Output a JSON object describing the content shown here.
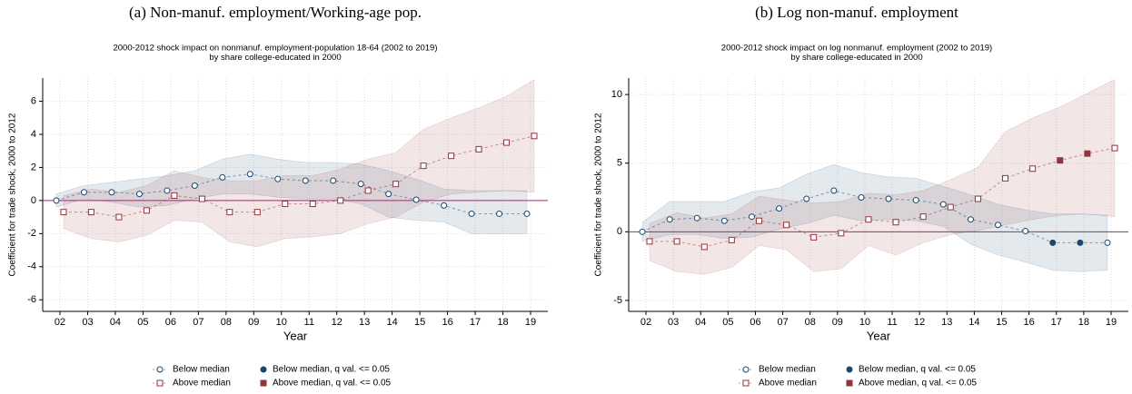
{
  "chart_data": [
    {
      "type": "line",
      "caption": "(a) Non-manuf. employment/Working-age pop.",
      "title": [
        "2000-2012 shock impact on nonmanuf. employment-population 18-64 (2002 to 2019)",
        "by share college-educated in 2000"
      ],
      "xlabel": "Year",
      "ylabel": "Coefficient for trade shock, 2000 to 2012",
      "categories": [
        "02",
        "03",
        "04",
        "05",
        "06",
        "07",
        "08",
        "09",
        "10",
        "11",
        "12",
        "13",
        "14",
        "15",
        "16",
        "17",
        "18",
        "19"
      ],
      "ylim": [
        -6.7,
        7.4
      ],
      "yticks": [
        -6,
        -4,
        -2,
        0,
        2,
        4,
        6
      ],
      "reference_line": 0,
      "grid": true,
      "series": [
        {
          "name": "Below median",
          "significant_name": "Below median, q val. <= 0.05",
          "color": "#1a476f",
          "marker": "circle",
          "values": [
            0,
            0.5,
            0.5,
            0.4,
            0.6,
            0.9,
            1.4,
            1.6,
            1.3,
            1.2,
            1.2,
            1.0,
            0.4,
            0.05,
            -0.3,
            -0.8,
            -0.8,
            -0.8
          ],
          "significant": [
            false,
            false,
            false,
            false,
            false,
            false,
            false,
            false,
            false,
            false,
            false,
            false,
            false,
            false,
            false,
            false,
            false,
            false
          ],
          "ci_lower": [
            -0.4,
            0.1,
            -0.1,
            -0.4,
            -0.3,
            0.1,
            0.4,
            0.4,
            0.2,
            0.1,
            0.1,
            -0.2,
            -1.0,
            -1.2,
            -1.3,
            -2.0,
            -2.0,
            -2.0
          ],
          "ci_upper": [
            0.4,
            0.9,
            1.1,
            1.3,
            1.5,
            1.8,
            2.5,
            2.8,
            2.5,
            2.3,
            2.3,
            2.2,
            1.8,
            1.3,
            0.7,
            0.6,
            0.6,
            0.6
          ]
        },
        {
          "name": "Above median",
          "significant_name": "Above median, q val. <= 0.05",
          "color": "#90353b",
          "marker": "square",
          "values": [
            -0.7,
            -0.7,
            -1.0,
            -0.6,
            0.3,
            0.1,
            -0.7,
            -0.7,
            -0.2,
            -0.2,
            0.0,
            0.6,
            1.0,
            2.1,
            2.7,
            3.1,
            3.5,
            3.9
          ],
          "significant": [
            false,
            false,
            false,
            false,
            false,
            false,
            false,
            false,
            false,
            false,
            false,
            false,
            false,
            false,
            false,
            false,
            false,
            false
          ],
          "ci_lower": [
            -1.7,
            -2.3,
            -2.5,
            -2.1,
            -1.2,
            -1.3,
            -2.5,
            -2.8,
            -2.3,
            -2.2,
            -2.0,
            -1.4,
            -1.0,
            -0.1,
            0.4,
            0.5,
            0.6,
            0.5
          ],
          "ci_upper": [
            0.3,
            0.7,
            0.5,
            0.9,
            1.8,
            1.4,
            1.2,
            1.2,
            1.5,
            1.5,
            1.9,
            2.5,
            2.9,
            4.3,
            5.0,
            5.6,
            6.3,
            7.3
          ]
        }
      ]
    },
    {
      "type": "line",
      "caption": "(b) Log non-manuf. employment",
      "title": [
        "2000-2012 shock impact on log nonmanuf. employment (2002 to 2019)",
        "by share college-educated in 2000"
      ],
      "xlabel": "Year",
      "ylabel": "Coefficient for trade shock, 2000 to 2012",
      "categories": [
        "02",
        "03",
        "04",
        "05",
        "06",
        "07",
        "08",
        "09",
        "10",
        "11",
        "12",
        "13",
        "14",
        "15",
        "16",
        "17",
        "18",
        "19"
      ],
      "ylim": [
        -5.8,
        11.2
      ],
      "yticks": [
        -5,
        0,
        5,
        10
      ],
      "reference_line": 0,
      "grid": true,
      "series": [
        {
          "name": "Below median",
          "significant_name": "Below median, q val. <= 0.05",
          "color": "#1a476f",
          "marker": "circle",
          "values": [
            0,
            0.9,
            1.0,
            0.8,
            1.1,
            1.7,
            2.4,
            3.0,
            2.5,
            2.4,
            2.3,
            2.0,
            0.9,
            0.5,
            0.05,
            -0.8,
            -0.8,
            -0.8
          ],
          "significant": [
            false,
            false,
            false,
            false,
            false,
            false,
            false,
            false,
            false,
            false,
            false,
            false,
            false,
            false,
            false,
            true,
            true,
            false
          ],
          "ci_lower": [
            -0.7,
            -0.2,
            -0.2,
            -0.5,
            -0.4,
            0.2,
            0.6,
            1.2,
            0.8,
            0.9,
            0.8,
            0.4,
            -0.9,
            -1.7,
            -2.2,
            -2.8,
            -2.9,
            -2.8
          ],
          "ci_upper": [
            0.7,
            2.2,
            2.2,
            2.2,
            2.9,
            3.2,
            4.2,
            4.9,
            4.3,
            4.0,
            3.9,
            3.3,
            2.7,
            2.0,
            1.6,
            1.3,
            1.3,
            1.2
          ]
        },
        {
          "name": "Above median",
          "significant_name": "Above median, q val. <= 0.05",
          "color": "#90353b",
          "marker": "square",
          "values": [
            -0.7,
            -0.7,
            -1.1,
            -0.6,
            0.8,
            0.5,
            -0.4,
            -0.1,
            0.9,
            0.7,
            1.1,
            1.8,
            2.4,
            3.9,
            4.6,
            5.2,
            5.7,
            6.1
          ],
          "significant": [
            false,
            false,
            false,
            false,
            false,
            false,
            false,
            false,
            false,
            false,
            false,
            false,
            false,
            false,
            false,
            true,
            true,
            false
          ],
          "ci_lower": [
            -2.1,
            -2.9,
            -3.1,
            -2.6,
            -1.0,
            -1.3,
            -2.9,
            -2.7,
            -1.0,
            -1.7,
            -0.8,
            -0.2,
            0.1,
            0.5,
            0.9,
            1.2,
            1.3,
            1.1
          ],
          "ci_upper": [
            0.6,
            1.4,
            1.0,
            1.3,
            2.6,
            2.3,
            2.1,
            2.2,
            2.8,
            2.7,
            3.0,
            3.8,
            4.7,
            7.3,
            8.3,
            9.1,
            10.1,
            11.1
          ]
        }
      ]
    }
  ]
}
